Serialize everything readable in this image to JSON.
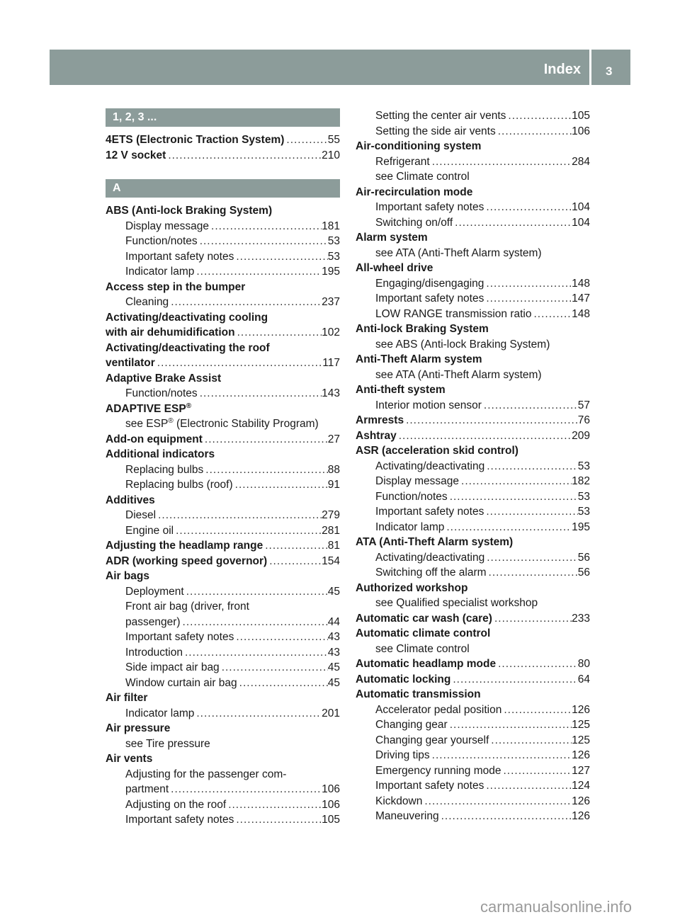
{
  "header": {
    "title": "Index",
    "page": "3",
    "color": "#8c9c9a"
  },
  "watermark": "carmanualsonline.info",
  "left": [
    {
      "t": "band",
      "text": "1, 2, 3 ..."
    },
    {
      "t": "head",
      "text": "4ETS (Electronic Traction System)",
      "page": "55"
    },
    {
      "t": "head",
      "text": "12 V socket",
      "page": "210"
    },
    {
      "t": "band",
      "text": "A"
    },
    {
      "t": "head",
      "text": "ABS (Anti-lock Braking System)"
    },
    {
      "t": "sub",
      "text": "Display message",
      "page": "181"
    },
    {
      "t": "sub",
      "text": "Function/notes",
      "page": "53"
    },
    {
      "t": "sub",
      "text": "Important safety notes",
      "page": "53"
    },
    {
      "t": "sub",
      "text": "Indicator lamp",
      "page": "195"
    },
    {
      "t": "head",
      "text": "Access step in the bumper"
    },
    {
      "t": "sub",
      "text": "Cleaning",
      "page": "237"
    },
    {
      "t": "head",
      "text": "Activating/deactivating cooling"
    },
    {
      "t": "head",
      "text": "with air dehumidification",
      "page": "102"
    },
    {
      "t": "head",
      "text": "Activating/deactivating the roof"
    },
    {
      "t": "head",
      "text": "ventilator",
      "page": "117"
    },
    {
      "t": "head",
      "text": "Adaptive Brake Assist"
    },
    {
      "t": "sub",
      "text": "Function/notes",
      "page": "143"
    },
    {
      "t": "head",
      "text": "ADAPTIVE ESP",
      "sup": "®"
    },
    {
      "t": "sub",
      "text": "see ESP",
      "sup": "®",
      "after": " (Electronic Stability Program)"
    },
    {
      "t": "head",
      "text": "Add-on equipment",
      "page": "27"
    },
    {
      "t": "head",
      "text": "Additional indicators"
    },
    {
      "t": "sub",
      "text": "Replacing bulbs",
      "page": "88"
    },
    {
      "t": "sub",
      "text": "Replacing bulbs (roof)",
      "page": "91"
    },
    {
      "t": "head",
      "text": "Additives"
    },
    {
      "t": "sub",
      "text": "Diesel",
      "page": "279"
    },
    {
      "t": "sub",
      "text": "Engine oil",
      "page": "281"
    },
    {
      "t": "head",
      "text": "Adjusting the headlamp range",
      "page": "81"
    },
    {
      "t": "head",
      "text": "ADR (working speed governor)",
      "page": "154"
    },
    {
      "t": "head",
      "text": "Air bags"
    },
    {
      "t": "sub",
      "text": "Deployment",
      "page": "45"
    },
    {
      "t": "sub",
      "text": "Front air bag (driver, front"
    },
    {
      "t": "sub",
      "text": "passenger)",
      "page": "44"
    },
    {
      "t": "sub",
      "text": "Important safety notes",
      "page": "43"
    },
    {
      "t": "sub",
      "text": "Introduction",
      "page": "43"
    },
    {
      "t": "sub",
      "text": "Side impact air bag",
      "page": "45"
    },
    {
      "t": "sub",
      "text": "Window curtain air bag",
      "page": "45"
    },
    {
      "t": "head",
      "text": "Air filter"
    },
    {
      "t": "sub",
      "text": "Indicator lamp",
      "page": "201"
    },
    {
      "t": "head",
      "text": "Air pressure"
    },
    {
      "t": "sub",
      "text": "see Tire pressure"
    },
    {
      "t": "head",
      "text": "Air vents"
    },
    {
      "t": "sub",
      "text": "Adjusting for the passenger com-"
    },
    {
      "t": "sub",
      "text": "partment",
      "page": "106"
    },
    {
      "t": "sub",
      "text": "Adjusting on the roof",
      "page": "106"
    },
    {
      "t": "sub",
      "text": "Important safety notes",
      "page": "105"
    }
  ],
  "right": [
    {
      "t": "sub",
      "text": "Setting the center air vents",
      "page": "105"
    },
    {
      "t": "sub",
      "text": "Setting the side air vents",
      "page": "106"
    },
    {
      "t": "head",
      "text": "Air-conditioning system"
    },
    {
      "t": "sub",
      "text": "Refrigerant",
      "page": "284"
    },
    {
      "t": "sub",
      "text": "see Climate control"
    },
    {
      "t": "head",
      "text": "Air-recirculation mode"
    },
    {
      "t": "sub",
      "text": "Important safety notes",
      "page": "104"
    },
    {
      "t": "sub",
      "text": "Switching on/off",
      "page": "104"
    },
    {
      "t": "head",
      "text": "Alarm system"
    },
    {
      "t": "sub",
      "text": "see ATA (Anti-Theft Alarm system)"
    },
    {
      "t": "head",
      "text": "All-wheel drive"
    },
    {
      "t": "sub",
      "text": "Engaging/disengaging",
      "page": "148"
    },
    {
      "t": "sub",
      "text": "Important safety notes",
      "page": "147"
    },
    {
      "t": "sub",
      "text": "LOW RANGE transmission ratio",
      "page": "148"
    },
    {
      "t": "head",
      "text": "Anti-lock Braking System"
    },
    {
      "t": "sub",
      "text": "see ABS (Anti-lock Braking System)"
    },
    {
      "t": "head",
      "text": "Anti-Theft Alarm system"
    },
    {
      "t": "sub",
      "text": "see ATA (Anti-Theft Alarm system)"
    },
    {
      "t": "head",
      "text": "Anti-theft system"
    },
    {
      "t": "sub",
      "text": "Interior motion sensor",
      "page": "57"
    },
    {
      "t": "head",
      "text": "Armrests",
      "page": "76"
    },
    {
      "t": "head",
      "text": "Ashtray",
      "page": "209"
    },
    {
      "t": "head",
      "text": "ASR (acceleration skid control)"
    },
    {
      "t": "sub",
      "text": "Activating/deactivating",
      "page": "53"
    },
    {
      "t": "sub",
      "text": "Display message",
      "page": "182"
    },
    {
      "t": "sub",
      "text": "Function/notes",
      "page": "53"
    },
    {
      "t": "sub",
      "text": "Important safety notes",
      "page": "53"
    },
    {
      "t": "sub",
      "text": "Indicator lamp",
      "page": "195"
    },
    {
      "t": "head",
      "text": "ATA (Anti-Theft Alarm system)"
    },
    {
      "t": "sub",
      "text": "Activating/deactivating",
      "page": "56"
    },
    {
      "t": "sub",
      "text": "Switching off the alarm",
      "page": "56"
    },
    {
      "t": "head",
      "text": "Authorized workshop"
    },
    {
      "t": "sub",
      "text": "see Qualified specialist workshop"
    },
    {
      "t": "head",
      "text": "Automatic car wash (care)",
      "page": "233"
    },
    {
      "t": "head",
      "text": "Automatic climate control"
    },
    {
      "t": "sub",
      "text": "see Climate control"
    },
    {
      "t": "head",
      "text": "Automatic headlamp mode",
      "page": "80"
    },
    {
      "t": "head",
      "text": "Automatic locking",
      "page": "64"
    },
    {
      "t": "head",
      "text": "Automatic transmission"
    },
    {
      "t": "sub",
      "text": "Accelerator pedal position",
      "page": "126"
    },
    {
      "t": "sub",
      "text": "Changing gear",
      "page": "125"
    },
    {
      "t": "sub",
      "text": "Changing gear yourself",
      "page": "125"
    },
    {
      "t": "sub",
      "text": "Driving tips",
      "page": "126"
    },
    {
      "t": "sub",
      "text": "Emergency running mode",
      "page": "127"
    },
    {
      "t": "sub",
      "text": "Important safety notes",
      "page": "124"
    },
    {
      "t": "sub",
      "text": "Kickdown",
      "page": "126"
    },
    {
      "t": "sub",
      "text": "Maneuvering",
      "page": "126"
    }
  ]
}
